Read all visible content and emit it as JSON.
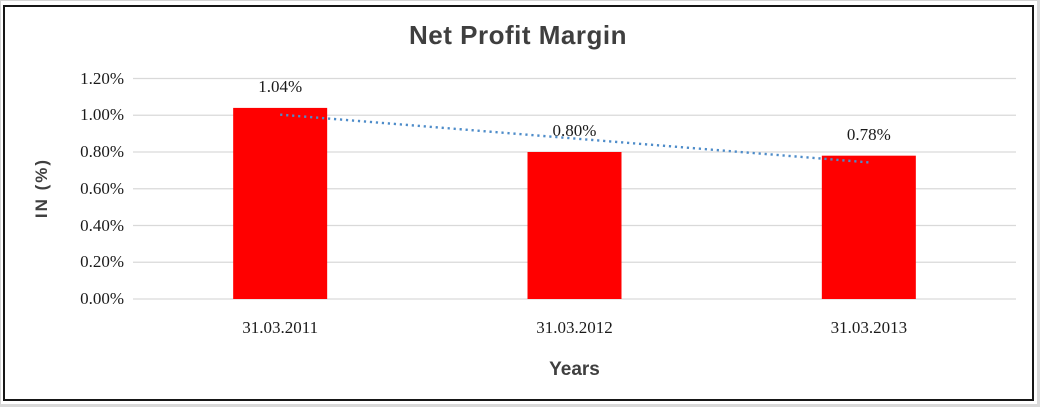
{
  "chart_data": {
    "type": "bar",
    "title": "Net Profit Margin",
    "xlabel": "Years",
    "ylabel": "IN (%)",
    "categories": [
      "31.03.2011",
      "31.03.2012",
      "31.03.2013"
    ],
    "values": [
      1.04,
      0.8,
      0.78
    ],
    "data_labels": [
      "1.04%",
      "0.80%",
      "0.78%"
    ],
    "y_ticks": [
      {
        "label": "1.20%",
        "value": 1.2
      },
      {
        "label": "1.00%",
        "value": 1.0
      },
      {
        "label": "0.80%",
        "value": 0.8
      },
      {
        "label": "0.60%",
        "value": 0.6
      },
      {
        "label": "0.40%",
        "value": 0.4
      },
      {
        "label": "0.20%",
        "value": 0.2
      },
      {
        "label": "0.00%",
        "value": 0.0
      }
    ],
    "ylim": [
      0,
      1.2
    ],
    "grid": true,
    "legend": "none",
    "colors": {
      "bar": "#FF0000",
      "trendline": "#4E8CC9",
      "gridline": "#D9D9D9",
      "title_text": "#3F3F3F",
      "tick_text": "#1A1A1A"
    },
    "trendline": {
      "type": "linear",
      "style": "dotted"
    }
  }
}
